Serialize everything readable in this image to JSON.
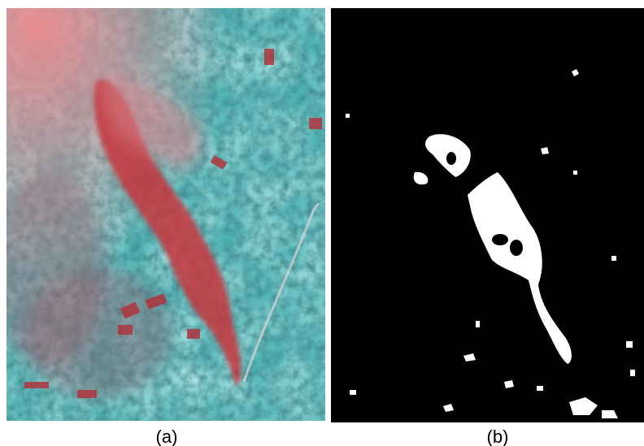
{
  "panels": [
    {
      "caption": "(a)"
    },
    {
      "caption": "(b)"
    }
  ]
}
